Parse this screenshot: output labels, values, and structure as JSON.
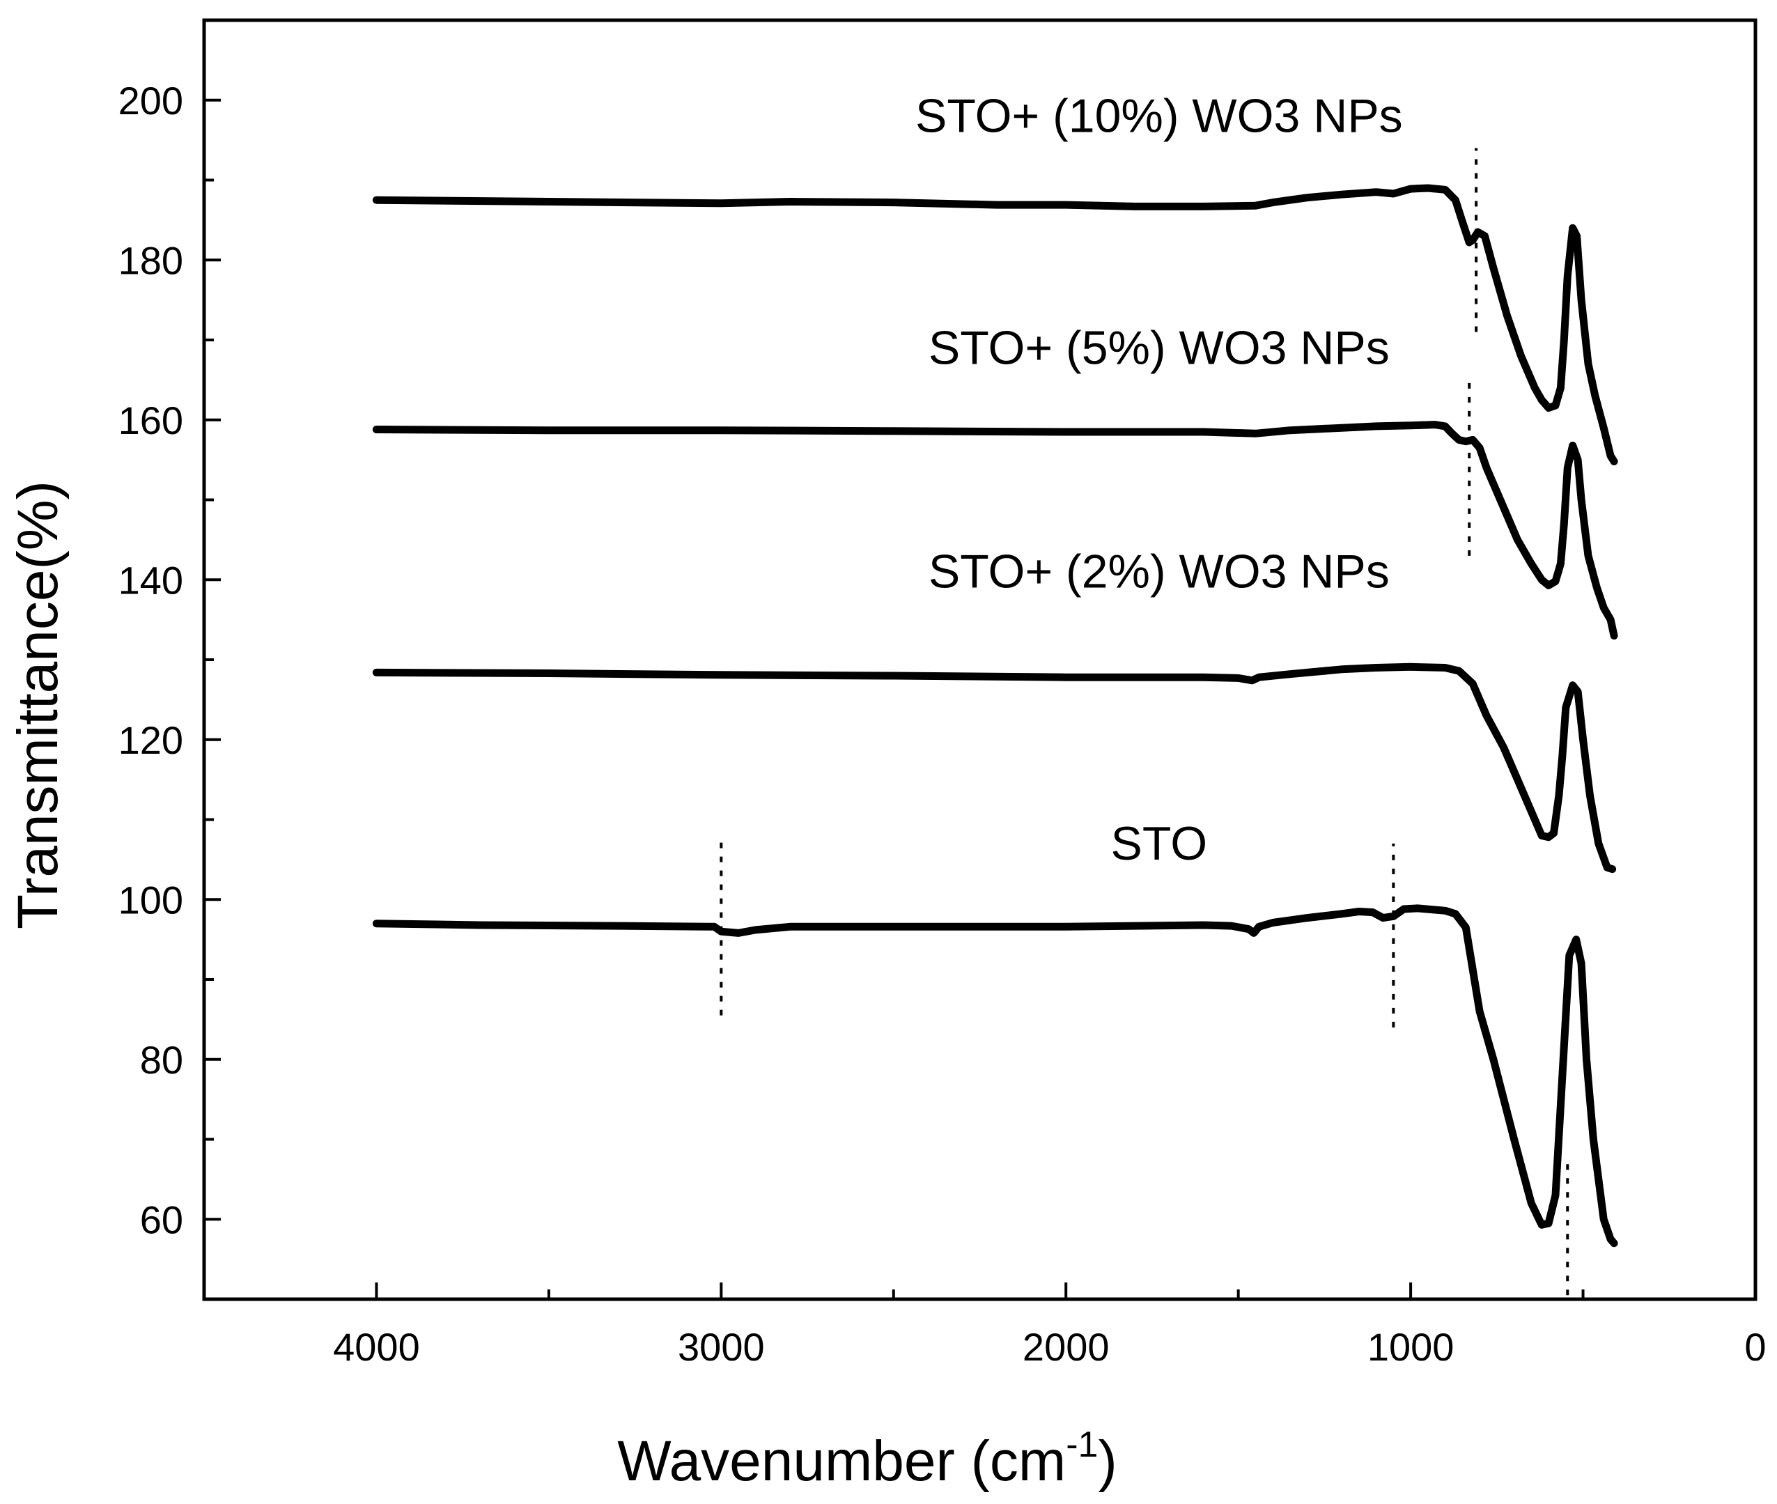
{
  "chart_data": {
    "type": "line",
    "title": "",
    "xlabel": "Wavenumber (cm",
    "xlabel_superscript": "-1",
    "xlabel_suffix": ")",
    "ylabel": "Transmittance(%)",
    "xlim": [
      4500,
      0
    ],
    "ylim": [
      50,
      210
    ],
    "x_ticks": [
      4000,
      3000,
      2000,
      1000,
      0
    ],
    "x_minor_ticks": [
      3500,
      2500,
      1500,
      500
    ],
    "y_ticks": [
      60,
      80,
      100,
      120,
      140,
      160,
      180,
      200
    ],
    "y_minor_ticks": [
      70,
      90,
      110,
      130,
      150,
      170,
      190
    ],
    "series": [
      {
        "name": "STO",
        "label": "STO",
        "label_pos": [
          1730,
          105
        ],
        "points": [
          [
            4000,
            97
          ],
          [
            3700,
            96.8
          ],
          [
            3300,
            96.7
          ],
          [
            3020,
            96.6
          ],
          [
            3000,
            96
          ],
          [
            2950,
            95.8
          ],
          [
            2900,
            96.2
          ],
          [
            2800,
            96.6
          ],
          [
            2400,
            96.6
          ],
          [
            2000,
            96.6
          ],
          [
            1600,
            96.8
          ],
          [
            1520,
            96.7
          ],
          [
            1470,
            96.3
          ],
          [
            1455,
            95.8
          ],
          [
            1440,
            96.6
          ],
          [
            1400,
            97.1
          ],
          [
            1300,
            97.7
          ],
          [
            1200,
            98.2
          ],
          [
            1150,
            98.5
          ],
          [
            1110,
            98.4
          ],
          [
            1080,
            97.7
          ],
          [
            1050,
            97.9
          ],
          [
            1020,
            98.8
          ],
          [
            980,
            98.9
          ],
          [
            900,
            98.6
          ],
          [
            870,
            98.2
          ],
          [
            840,
            96.5
          ],
          [
            800,
            86
          ],
          [
            760,
            80
          ],
          [
            700,
            70
          ],
          [
            650,
            62
          ],
          [
            620,
            59.3
          ],
          [
            600,
            59.5
          ],
          [
            580,
            63
          ],
          [
            560,
            78
          ],
          [
            540,
            93
          ],
          [
            520,
            95
          ],
          [
            505,
            92
          ],
          [
            490,
            80
          ],
          [
            470,
            70
          ],
          [
            440,
            60
          ],
          [
            420,
            57.5
          ],
          [
            410,
            57
          ]
        ]
      },
      {
        "name": "STO+ (2%) WO3 NPs",
        "label": "STO+ (2%) WO3 NPs",
        "label_pos": [
          1730,
          139
        ],
        "points": [
          [
            4000,
            128.4
          ],
          [
            3500,
            128.3
          ],
          [
            3000,
            128.1
          ],
          [
            2500,
            128
          ],
          [
            2000,
            127.8
          ],
          [
            1600,
            127.8
          ],
          [
            1500,
            127.7
          ],
          [
            1460,
            127.4
          ],
          [
            1440,
            127.8
          ],
          [
            1350,
            128.2
          ],
          [
            1200,
            128.8
          ],
          [
            1100,
            129
          ],
          [
            1000,
            129.1
          ],
          [
            900,
            129
          ],
          [
            860,
            128.6
          ],
          [
            820,
            127
          ],
          [
            780,
            123
          ],
          [
            730,
            119
          ],
          [
            680,
            114
          ],
          [
            640,
            110
          ],
          [
            620,
            108
          ],
          [
            600,
            107.8
          ],
          [
            585,
            108.3
          ],
          [
            570,
            113
          ],
          [
            560,
            118
          ],
          [
            550,
            124
          ],
          [
            530,
            126.8
          ],
          [
            515,
            126
          ],
          [
            500,
            120
          ],
          [
            480,
            113
          ],
          [
            455,
            107
          ],
          [
            430,
            104
          ],
          [
            415,
            103.8
          ]
        ]
      },
      {
        "name": "STO+ (5%) WO3 NPs",
        "label": "STO+ (5%) WO3 NPs",
        "label_pos": [
          1730,
          167
        ],
        "points": [
          [
            4000,
            158.8
          ],
          [
            3500,
            158.7
          ],
          [
            3000,
            158.7
          ],
          [
            2500,
            158.6
          ],
          [
            2000,
            158.5
          ],
          [
            1600,
            158.5
          ],
          [
            1450,
            158.3
          ],
          [
            1350,
            158.7
          ],
          [
            1200,
            159
          ],
          [
            1100,
            159.2
          ],
          [
            1000,
            159.3
          ],
          [
            930,
            159.4
          ],
          [
            900,
            159.2
          ],
          [
            880,
            158.3
          ],
          [
            860,
            157.5
          ],
          [
            840,
            157.3
          ],
          [
            820,
            157.5
          ],
          [
            800,
            156.5
          ],
          [
            780,
            154
          ],
          [
            740,
            150
          ],
          [
            690,
            145
          ],
          [
            650,
            142
          ],
          [
            620,
            140
          ],
          [
            600,
            139.3
          ],
          [
            580,
            139.8
          ],
          [
            565,
            142
          ],
          [
            555,
            147
          ],
          [
            545,
            154
          ],
          [
            530,
            156.8
          ],
          [
            515,
            155
          ],
          [
            505,
            150
          ],
          [
            485,
            143
          ],
          [
            460,
            139
          ],
          [
            440,
            136.5
          ],
          [
            420,
            135
          ],
          [
            410,
            133
          ]
        ]
      },
      {
        "name": "STO+ (10%) WO3 NPs",
        "label": "STO+ (10%) WO3 NPs",
        "label_pos": [
          1730,
          196
        ],
        "points": [
          [
            4000,
            187.5
          ],
          [
            3500,
            187.3
          ],
          [
            3000,
            187.1
          ],
          [
            2800,
            187.3
          ],
          [
            2500,
            187.2
          ],
          [
            2200,
            186.9
          ],
          [
            2000,
            186.9
          ],
          [
            1800,
            186.7
          ],
          [
            1600,
            186.7
          ],
          [
            1450,
            186.8
          ],
          [
            1400,
            187.2
          ],
          [
            1300,
            187.8
          ],
          [
            1200,
            188.2
          ],
          [
            1100,
            188.5
          ],
          [
            1050,
            188.3
          ],
          [
            1000,
            188.9
          ],
          [
            950,
            189
          ],
          [
            900,
            188.8
          ],
          [
            870,
            187.5
          ],
          [
            850,
            184.8
          ],
          [
            830,
            182.2
          ],
          [
            820,
            182.5
          ],
          [
            805,
            183.5
          ],
          [
            785,
            183
          ],
          [
            760,
            179
          ],
          [
            720,
            173
          ],
          [
            680,
            168
          ],
          [
            640,
            164
          ],
          [
            620,
            162.5
          ],
          [
            600,
            161.5
          ],
          [
            580,
            161.8
          ],
          [
            565,
            164
          ],
          [
            555,
            170
          ],
          [
            545,
            178
          ],
          [
            530,
            184
          ],
          [
            518,
            183
          ],
          [
            505,
            175
          ],
          [
            485,
            167
          ],
          [
            465,
            163
          ],
          [
            440,
            159
          ],
          [
            420,
            155.5
          ],
          [
            410,
            154.8
          ]
        ]
      }
    ],
    "markers": [
      {
        "x": 3000,
        "y_from": 85.5,
        "y_to": 108
      },
      {
        "x": 1050,
        "y_from": 84,
        "y_to": 107
      },
      {
        "x": 545,
        "y_from": 50.5,
        "y_to": 67
      },
      {
        "x": 830,
        "y_from": 143,
        "y_to": 165
      },
      {
        "x": 810,
        "y_from": 171,
        "y_to": 194
      }
    ]
  }
}
